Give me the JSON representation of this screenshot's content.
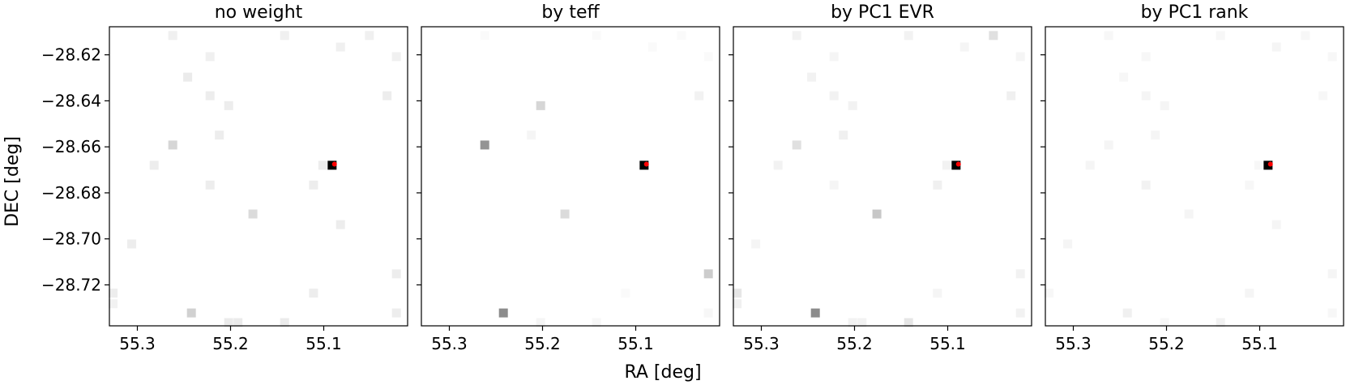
{
  "chart_data": [
    {
      "type": "heatmap",
      "title": "no weight",
      "xlim": [
        55.33,
        55.01
      ],
      "ylim": [
        -28.7378,
        -28.6078
      ],
      "xticks": [
        55.3,
        55.2,
        55.1
      ],
      "yticks": [
        -28.62,
        -28.64,
        -28.66,
        -28.68,
        -28.7,
        -28.72
      ],
      "cells": [
        {
          "ra": 55.262,
          "dec": -28.6116,
          "shade": 0.06
        },
        {
          "ra": 55.142,
          "dec": -28.6116,
          "shade": 0.06
        },
        {
          "ra": 55.051,
          "dec": -28.6116,
          "shade": 0.06
        },
        {
          "ra": 55.082,
          "dec": -28.6166,
          "shade": 0.06
        },
        {
          "ra": 55.022,
          "dec": -28.6208,
          "shade": 0.06
        },
        {
          "ra": 55.222,
          "dec": -28.6208,
          "shade": 0.06
        },
        {
          "ra": 55.246,
          "dec": -28.6297,
          "shade": 0.08
        },
        {
          "ra": 55.222,
          "dec": -28.6378,
          "shade": 0.07
        },
        {
          "ra": 55.032,
          "dec": -28.6378,
          "shade": 0.07
        },
        {
          "ra": 55.202,
          "dec": -28.6421,
          "shade": 0.07
        },
        {
          "ra": 55.212,
          "dec": -28.6549,
          "shade": 0.07
        },
        {
          "ra": 55.262,
          "dec": -28.6592,
          "shade": 0.16
        },
        {
          "ra": 55.282,
          "dec": -28.668,
          "shade": 0.07
        },
        {
          "ra": 55.101,
          "dec": -28.668,
          "shade": 0.07
        },
        {
          "ra": 55.222,
          "dec": -28.6766,
          "shade": 0.07
        },
        {
          "ra": 55.111,
          "dec": -28.6766,
          "shade": 0.07
        },
        {
          "ra": 55.176,
          "dec": -28.6892,
          "shade": 0.14
        },
        {
          "ra": 55.082,
          "dec": -28.6938,
          "shade": 0.07
        },
        {
          "ra": 55.306,
          "dec": -28.7022,
          "shade": 0.07
        },
        {
          "ra": 55.022,
          "dec": -28.7152,
          "shade": 0.07
        },
        {
          "ra": 55.111,
          "dec": -28.7236,
          "shade": 0.07
        },
        {
          "ra": 55.326,
          "dec": -28.7236,
          "shade": 0.07
        },
        {
          "ra": 55.326,
          "dec": -28.7282,
          "shade": 0.05
        },
        {
          "ra": 55.242,
          "dec": -28.7322,
          "shade": 0.18
        },
        {
          "ra": 55.022,
          "dec": -28.7322,
          "shade": 0.07
        },
        {
          "ra": 55.202,
          "dec": -28.7364,
          "shade": 0.08
        },
        {
          "ra": 55.192,
          "dec": -28.7364,
          "shade": 0.08
        },
        {
          "ra": 55.142,
          "dec": -28.7364,
          "shade": 0.08
        }
      ],
      "peak": {
        "ra": 55.091,
        "dec": -28.668
      },
      "star": {
        "ra": 55.0885,
        "dec": -28.6675
      }
    },
    {
      "type": "heatmap",
      "title": "by teff",
      "xlim": [
        55.33,
        55.01
      ],
      "ylim": [
        -28.7378,
        -28.6078
      ],
      "xticks": [
        55.3,
        55.2,
        55.1
      ],
      "yticks": [
        -28.62,
        -28.64,
        -28.66,
        -28.68,
        -28.7,
        -28.72
      ],
      "cells": [
        {
          "ra": 55.262,
          "dec": -28.6116,
          "shade": 0.02
        },
        {
          "ra": 55.142,
          "dec": -28.6116,
          "shade": 0.02
        },
        {
          "ra": 55.051,
          "dec": -28.6116,
          "shade": 0.02
        },
        {
          "ra": 55.082,
          "dec": -28.6166,
          "shade": 0.02
        },
        {
          "ra": 55.022,
          "dec": -28.6208,
          "shade": 0.02
        },
        {
          "ra": 55.032,
          "dec": -28.6378,
          "shade": 0.05
        },
        {
          "ra": 55.202,
          "dec": -28.6421,
          "shade": 0.16
        },
        {
          "ra": 55.212,
          "dec": -28.6549,
          "shade": 0.04
        },
        {
          "ra": 55.262,
          "dec": -28.6592,
          "shade": 0.42
        },
        {
          "ra": 55.176,
          "dec": -28.6892,
          "shade": 0.14
        },
        {
          "ra": 55.022,
          "dec": -28.7152,
          "shade": 0.2
        },
        {
          "ra": 55.111,
          "dec": -28.7236,
          "shade": 0.02
        },
        {
          "ra": 55.242,
          "dec": -28.7322,
          "shade": 0.45
        },
        {
          "ra": 55.022,
          "dec": -28.7322,
          "shade": 0.03
        },
        {
          "ra": 55.202,
          "dec": -28.7364,
          "shade": 0.04
        },
        {
          "ra": 55.142,
          "dec": -28.7364,
          "shade": 0.03
        }
      ],
      "peak": {
        "ra": 55.091,
        "dec": -28.668
      },
      "star": {
        "ra": 55.0885,
        "dec": -28.6675
      }
    },
    {
      "type": "heatmap",
      "title": "by PC1 EVR",
      "xlim": [
        55.33,
        55.01
      ],
      "ylim": [
        -28.7378,
        -28.6078
      ],
      "xticks": [
        55.3,
        55.2,
        55.1
      ],
      "yticks": [
        -28.62,
        -28.64,
        -28.66,
        -28.68,
        -28.7,
        -28.72
      ],
      "cells": [
        {
          "ra": 55.262,
          "dec": -28.6116,
          "shade": 0.05
        },
        {
          "ra": 55.142,
          "dec": -28.6116,
          "shade": 0.05
        },
        {
          "ra": 55.051,
          "dec": -28.6116,
          "shade": 0.12
        },
        {
          "ra": 55.082,
          "dec": -28.6166,
          "shade": 0.04
        },
        {
          "ra": 55.022,
          "dec": -28.6208,
          "shade": 0.04
        },
        {
          "ra": 55.222,
          "dec": -28.6208,
          "shade": 0.04
        },
        {
          "ra": 55.246,
          "dec": -28.6297,
          "shade": 0.05
        },
        {
          "ra": 55.222,
          "dec": -28.6378,
          "shade": 0.05
        },
        {
          "ra": 55.032,
          "dec": -28.6378,
          "shade": 0.06
        },
        {
          "ra": 55.202,
          "dec": -28.6421,
          "shade": 0.05
        },
        {
          "ra": 55.212,
          "dec": -28.6549,
          "shade": 0.06
        },
        {
          "ra": 55.262,
          "dec": -28.6592,
          "shade": 0.12
        },
        {
          "ra": 55.282,
          "dec": -28.668,
          "shade": 0.05
        },
        {
          "ra": 55.101,
          "dec": -28.668,
          "shade": 0.05
        },
        {
          "ra": 55.222,
          "dec": -28.6766,
          "shade": 0.04
        },
        {
          "ra": 55.111,
          "dec": -28.6766,
          "shade": 0.06
        },
        {
          "ra": 55.176,
          "dec": -28.6892,
          "shade": 0.22
        },
        {
          "ra": 55.306,
          "dec": -28.7022,
          "shade": 0.04
        },
        {
          "ra": 55.022,
          "dec": -28.7152,
          "shade": 0.05
        },
        {
          "ra": 55.111,
          "dec": -28.7236,
          "shade": 0.04
        },
        {
          "ra": 55.326,
          "dec": -28.7236,
          "shade": 0.1
        },
        {
          "ra": 55.326,
          "dec": -28.7282,
          "shade": 0.06
        },
        {
          "ra": 55.242,
          "dec": -28.7322,
          "shade": 0.45
        },
        {
          "ra": 55.022,
          "dec": -28.7322,
          "shade": 0.05
        },
        {
          "ra": 55.202,
          "dec": -28.7364,
          "shade": 0.05
        },
        {
          "ra": 55.192,
          "dec": -28.7364,
          "shade": 0.05
        },
        {
          "ra": 55.142,
          "dec": -28.7364,
          "shade": 0.1
        }
      ],
      "peak": {
        "ra": 55.091,
        "dec": -28.668
      },
      "star": {
        "ra": 55.0885,
        "dec": -28.6675
      }
    },
    {
      "type": "heatmap",
      "title": "by PC1 rank",
      "xlim": [
        55.33,
        55.01
      ],
      "ylim": [
        -28.7378,
        -28.6078
      ],
      "xticks": [
        55.3,
        55.2,
        55.1
      ],
      "yticks": [
        -28.62,
        -28.64,
        -28.66,
        -28.68,
        -28.7,
        -28.72
      ],
      "cells": [
        {
          "ra": 55.262,
          "dec": -28.6116,
          "shade": 0.03
        },
        {
          "ra": 55.142,
          "dec": -28.6116,
          "shade": 0.03
        },
        {
          "ra": 55.051,
          "dec": -28.6116,
          "shade": 0.03
        },
        {
          "ra": 55.082,
          "dec": -28.6166,
          "shade": 0.04
        },
        {
          "ra": 55.022,
          "dec": -28.6208,
          "shade": 0.03
        },
        {
          "ra": 55.222,
          "dec": -28.6208,
          "shade": 0.03
        },
        {
          "ra": 55.246,
          "dec": -28.6297,
          "shade": 0.03
        },
        {
          "ra": 55.222,
          "dec": -28.6378,
          "shade": 0.04
        },
        {
          "ra": 55.032,
          "dec": -28.6378,
          "shade": 0.03
        },
        {
          "ra": 55.202,
          "dec": -28.6421,
          "shade": 0.04
        },
        {
          "ra": 55.212,
          "dec": -28.6549,
          "shade": 0.04
        },
        {
          "ra": 55.262,
          "dec": -28.6592,
          "shade": 0.04
        },
        {
          "ra": 55.282,
          "dec": -28.668,
          "shade": 0.04
        },
        {
          "ra": 55.101,
          "dec": -28.668,
          "shade": 0.03
        },
        {
          "ra": 55.222,
          "dec": -28.6766,
          "shade": 0.05
        },
        {
          "ra": 55.111,
          "dec": -28.6766,
          "shade": 0.03
        },
        {
          "ra": 55.176,
          "dec": -28.6892,
          "shade": 0.04
        },
        {
          "ra": 55.082,
          "dec": -28.6938,
          "shade": 0.04
        },
        {
          "ra": 55.306,
          "dec": -28.7022,
          "shade": 0.04
        },
        {
          "ra": 55.022,
          "dec": -28.7152,
          "shade": 0.04
        },
        {
          "ra": 55.111,
          "dec": -28.7236,
          "shade": 0.04
        },
        {
          "ra": 55.326,
          "dec": -28.7236,
          "shade": 0.03
        },
        {
          "ra": 55.242,
          "dec": -28.7322,
          "shade": 0.06
        },
        {
          "ra": 55.022,
          "dec": -28.7322,
          "shade": 0.03
        },
        {
          "ra": 55.202,
          "dec": -28.7364,
          "shade": 0.03
        },
        {
          "ra": 55.142,
          "dec": -28.7364,
          "shade": 0.05
        }
      ],
      "peak": {
        "ra": 55.091,
        "dec": -28.668
      },
      "star": {
        "ra": 55.0885,
        "dec": -28.6675
      }
    }
  ],
  "axes": {
    "xlabel": "RA [deg]",
    "ylabel": "DEC [deg]",
    "shared_y": true,
    "colormap": "Greys",
    "highlight_color": "#ff0000"
  }
}
